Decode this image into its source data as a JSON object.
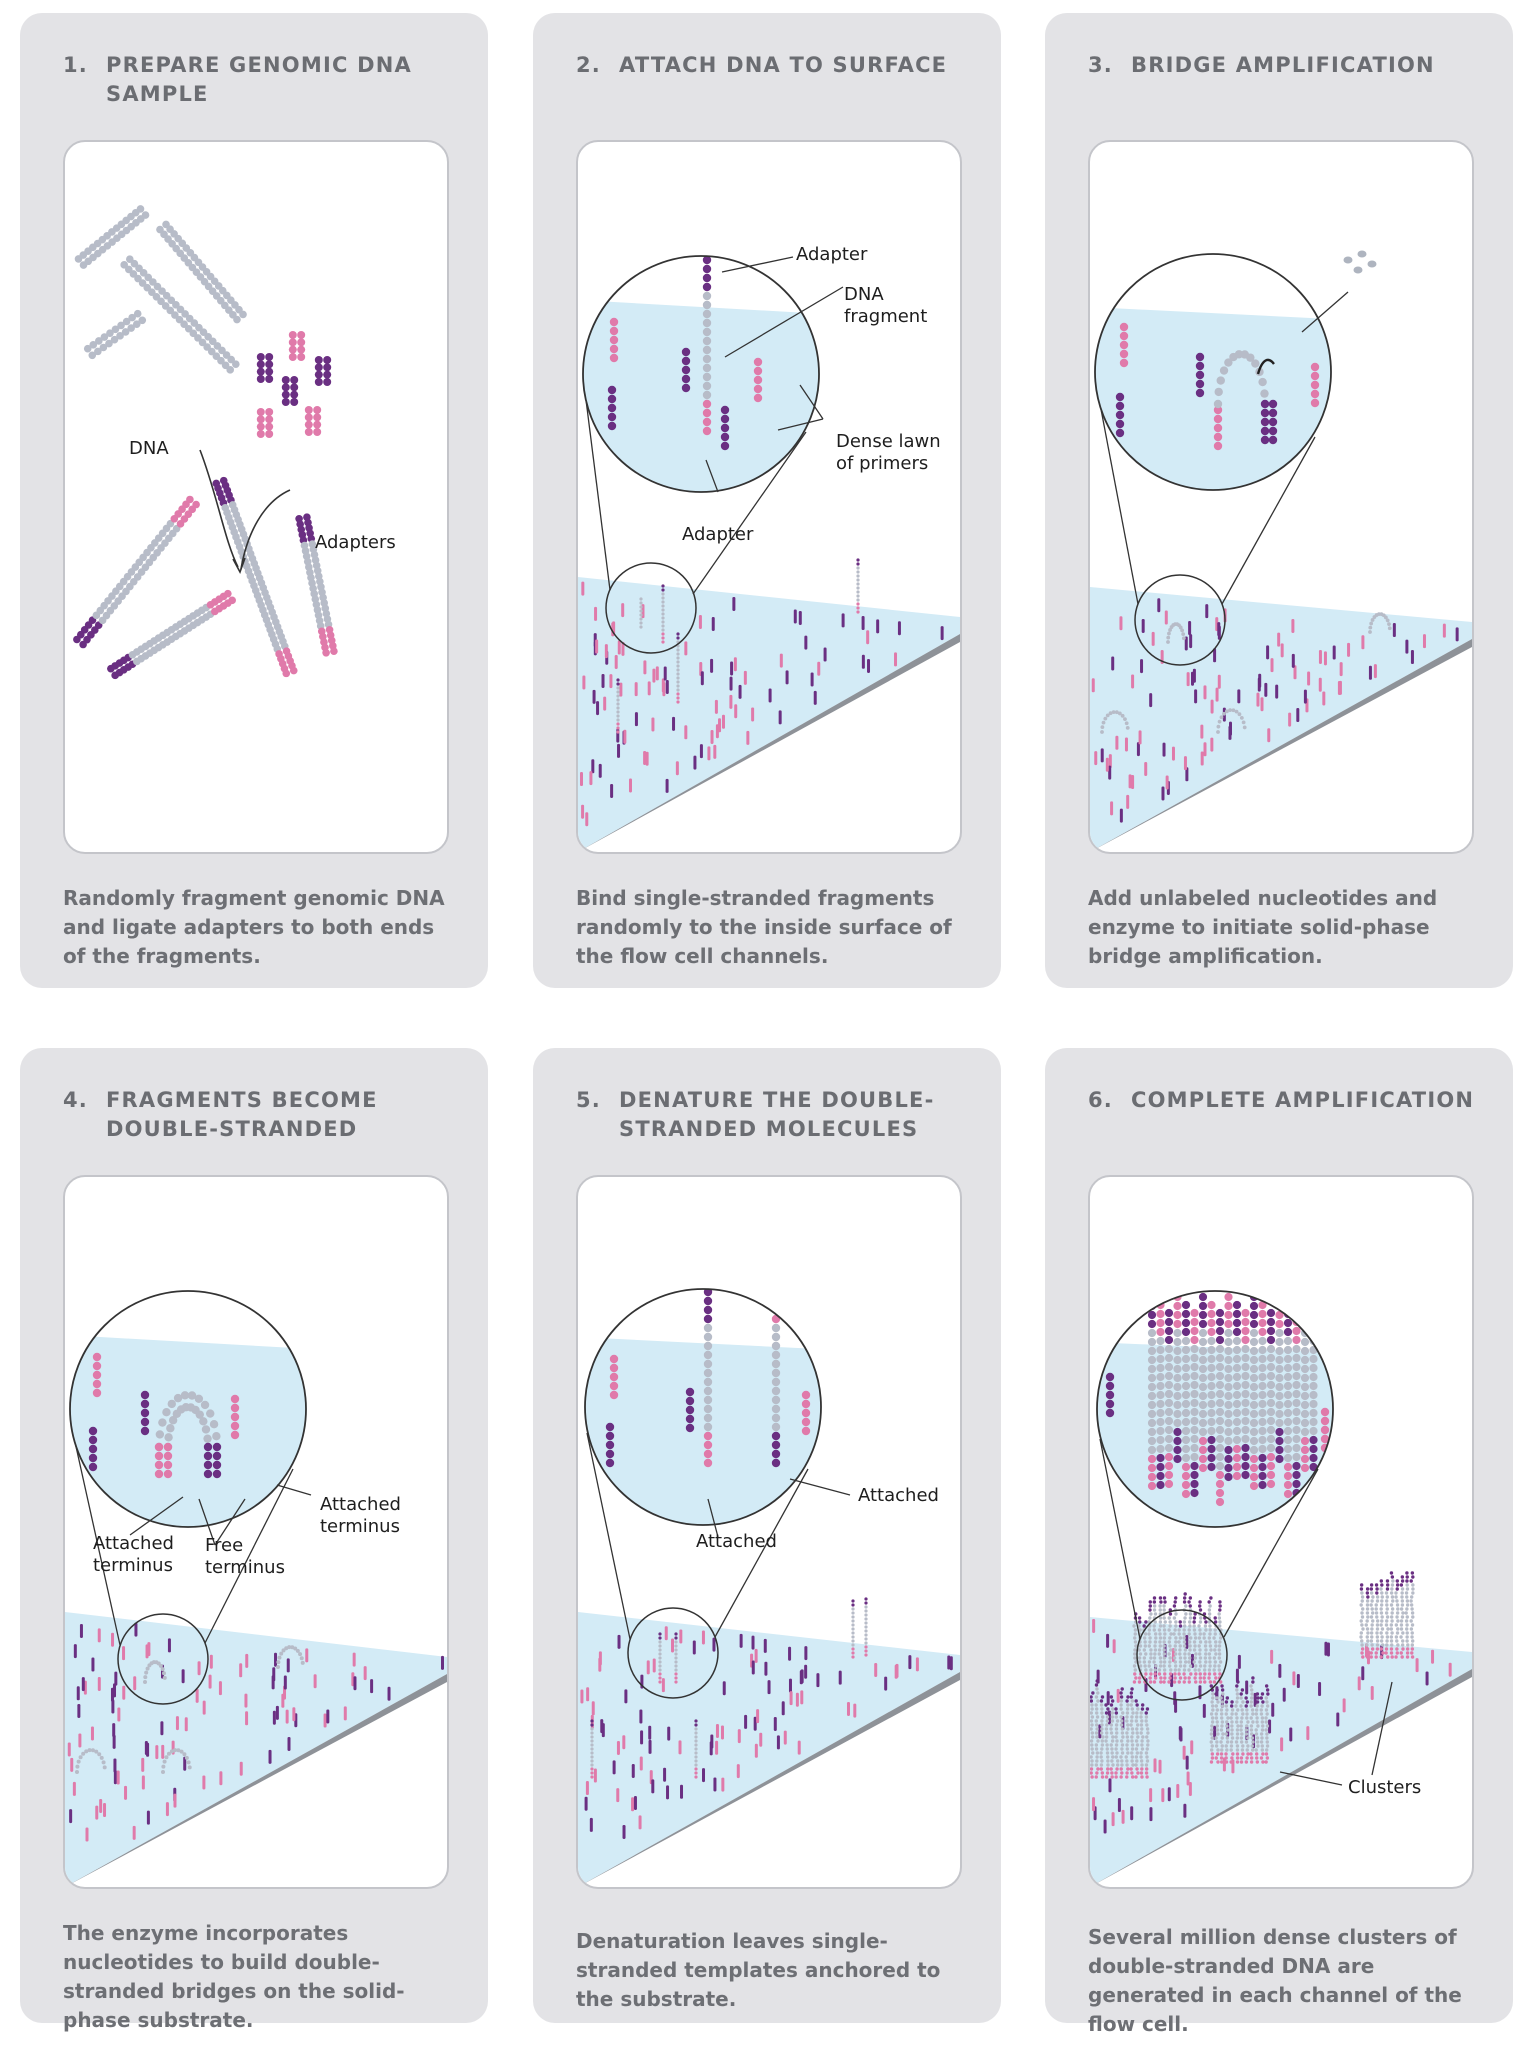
{
  "colors": {
    "dark_purple": "#6a2f82",
    "pink": "#e07aaa",
    "grey_strand": "#b7bcc8",
    "surface": "#cde8f4",
    "panel": "#e3e3e6"
  },
  "panels": [
    {
      "number": "1.",
      "title": "PREPARE GENOMIC DNA SAMPLE",
      "caption": "Randomly fragment genomic DNA and ligate adapters to both ends of the fragments.",
      "labels": {
        "dna": "DNA",
        "adapters": "Adapters"
      }
    },
    {
      "number": "2.",
      "title": "ATTACH DNA TO SURFACE",
      "caption": "Bind single-stranded fragments randomly to the inside surface of the flow cell channels.",
      "labels": {
        "adapter_top": "Adapter",
        "dna_fragment_1": "DNA",
        "dna_fragment_2": "fragment",
        "lawn_1": "Dense lawn",
        "lawn_2": "of primers",
        "adapter_bottom": "Adapter"
      }
    },
    {
      "number": "3.",
      "title": "BRIDGE AMPLIFICATION",
      "caption": "Add unlabeled nucleotides and enzyme to initiate solid-phase bridge amplification."
    },
    {
      "number": "4.",
      "title": "FRAGMENTS BECOME DOUBLE-STRANDED",
      "caption": "The enzyme incorporates nucleotides to build double-stranded bridges on the solid-phase substrate.",
      "labels": {
        "attached_left_1": "Attached",
        "attached_left_2": "terminus",
        "free_1": "Free",
        "free_2": "terminus",
        "attached_right_1": "Attached",
        "attached_right_2": "terminus"
      }
    },
    {
      "number": "5.",
      "title": "DENATURE THE DOUBLE-STRANDED MOLECULES",
      "caption": "Denaturation leaves single-stranded templates anchored to the substrate.",
      "labels": {
        "attached_right": "Attached",
        "attached_left": "Attached"
      }
    },
    {
      "number": "6.",
      "title": "COMPLETE AMPLIFICATION",
      "caption": "Several million dense clusters of double-stranded DNA are generated in each channel of the flow cell.",
      "labels": {
        "clusters": "Clusters"
      }
    }
  ]
}
